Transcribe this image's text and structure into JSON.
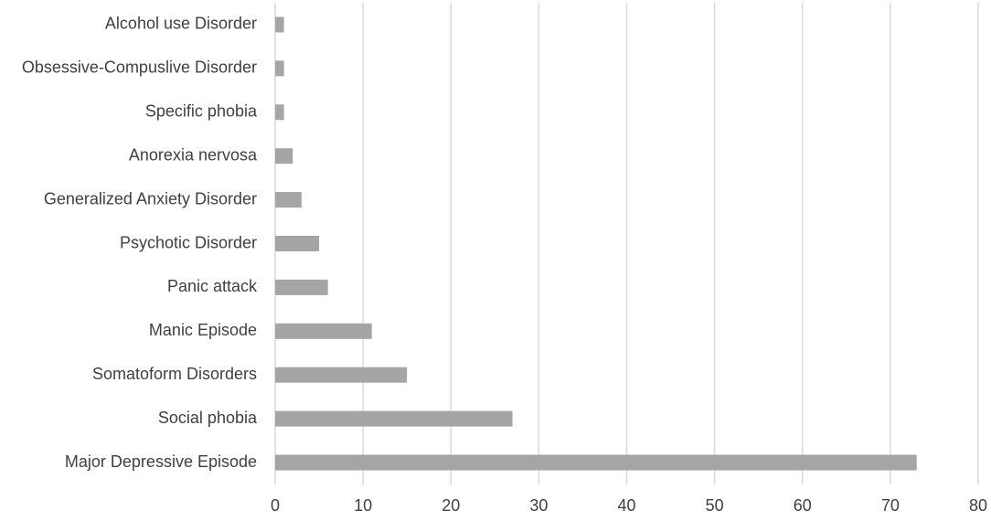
{
  "chart_data": {
    "type": "barh",
    "categories": [
      "Alcohol use Disorder",
      "Obsessive-Compuslive Disorder",
      "Specific phobia",
      "Anorexia nervosa",
      "Generalized Anxiety Disorder",
      "Psychotic Disorder",
      "Panic attack",
      "Manic Episode",
      "Somatoform Disorders",
      "Social phobia",
      "Major Depressive Episode"
    ],
    "values": [
      1,
      1,
      1,
      2,
      3,
      5,
      6,
      11,
      15,
      27,
      73
    ],
    "color": "#a5a5a5",
    "xlim": [
      0,
      80
    ],
    "xticks": [
      0,
      10,
      20,
      30,
      40,
      50,
      60,
      70,
      80
    ],
    "grid": true
  }
}
